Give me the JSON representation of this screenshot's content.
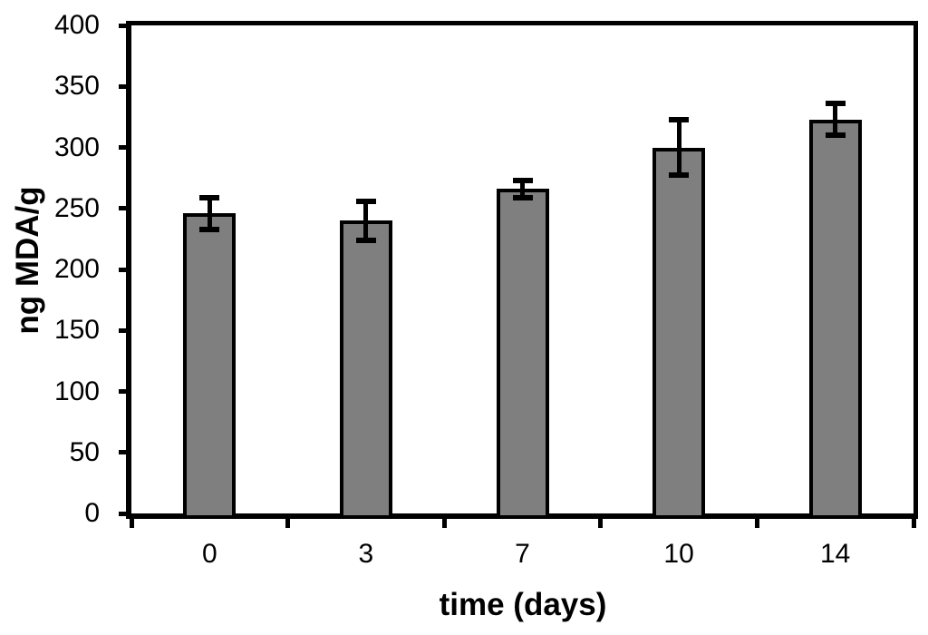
{
  "chart_data": {
    "type": "bar",
    "title": "",
    "xlabel": "time (days)",
    "ylabel": "ng MDA/g",
    "categories": [
      "0",
      "3",
      "7",
      "10",
      "14"
    ],
    "values": [
      246,
      240,
      266,
      300,
      323
    ],
    "errors": [
      13,
      16,
      7,
      23,
      13
    ],
    "ylim": [
      0,
      400
    ],
    "ytick_step": 50,
    "grid": false,
    "legend": false,
    "bar_color": "#7f7f7f",
    "bar_border_color": "#000000",
    "axis_color": "#000000",
    "background_color": "#ffffff"
  }
}
